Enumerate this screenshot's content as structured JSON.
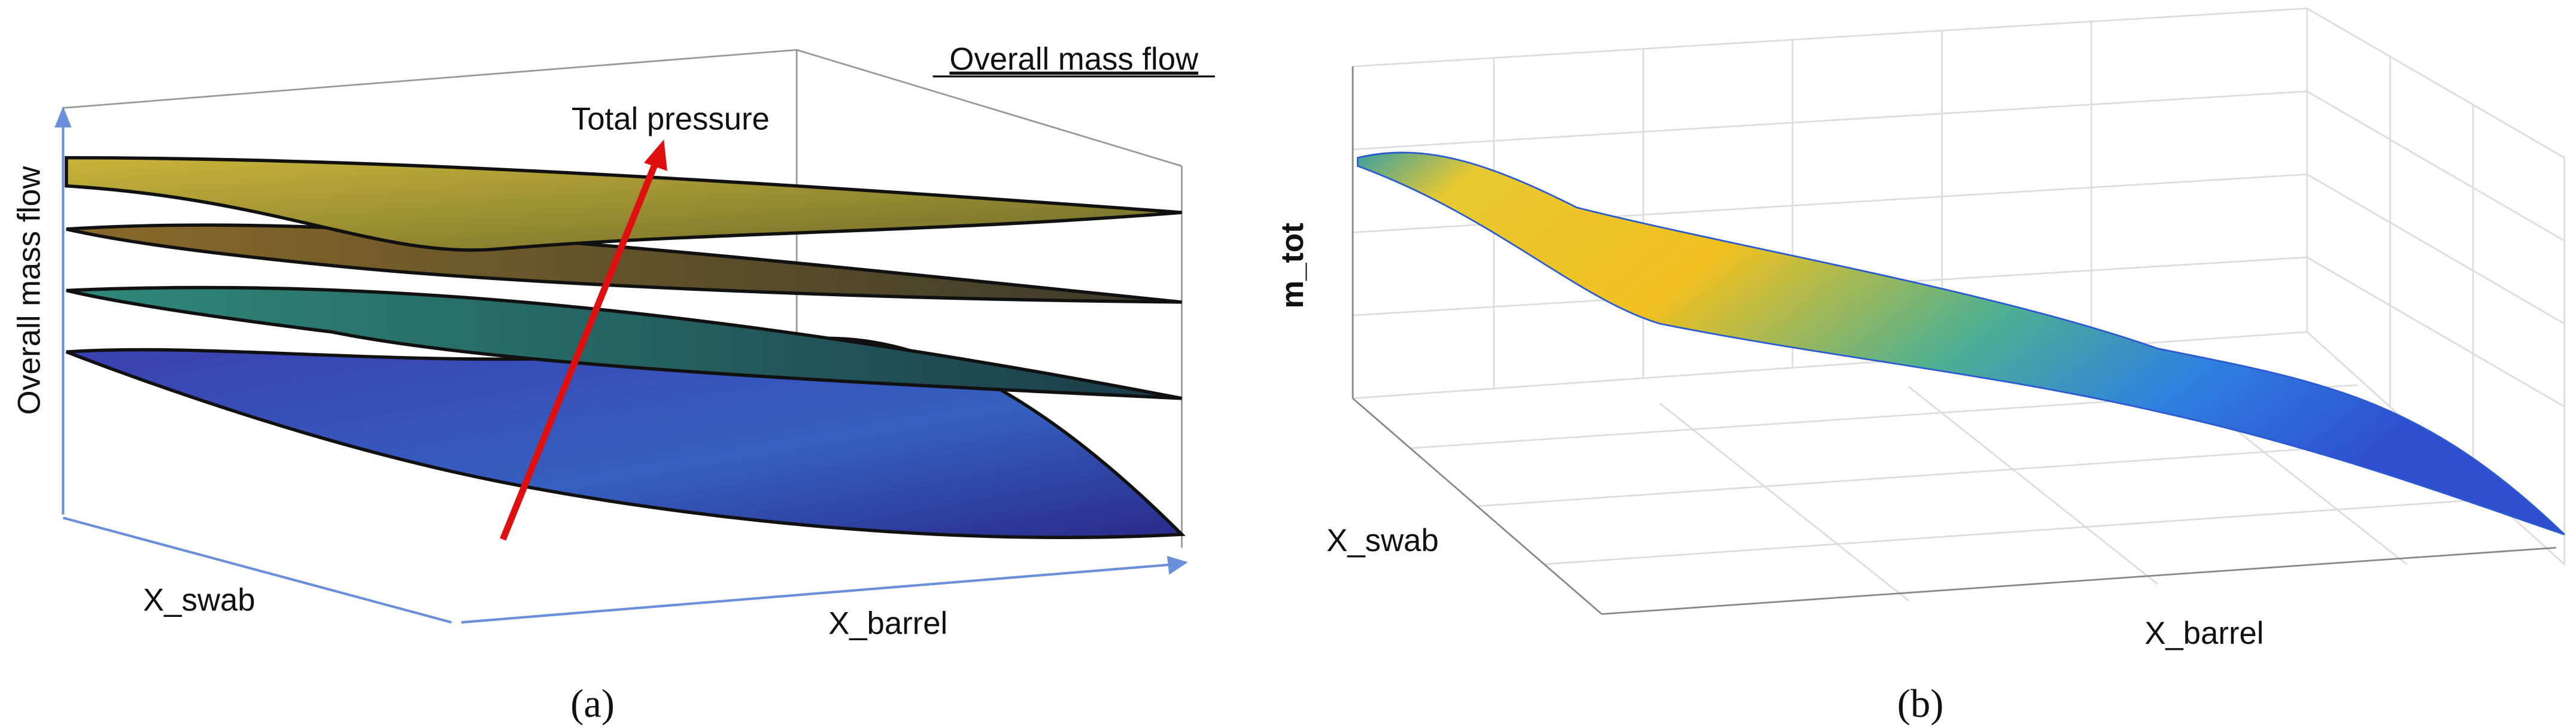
{
  "panels": [
    {
      "caption": "(a)",
      "legend_title": "Overall mass flow",
      "arrow_label": "Total pressure",
      "y_axis_label": "Overall mass flow",
      "x_axis_label": "X_swab",
      "z_axis_label": "X_barrel"
    },
    {
      "caption": "(b)",
      "y_axis_label": "m_tot",
      "x_axis_label": "X_swab",
      "z_axis_label": "X_barrel"
    }
  ]
}
